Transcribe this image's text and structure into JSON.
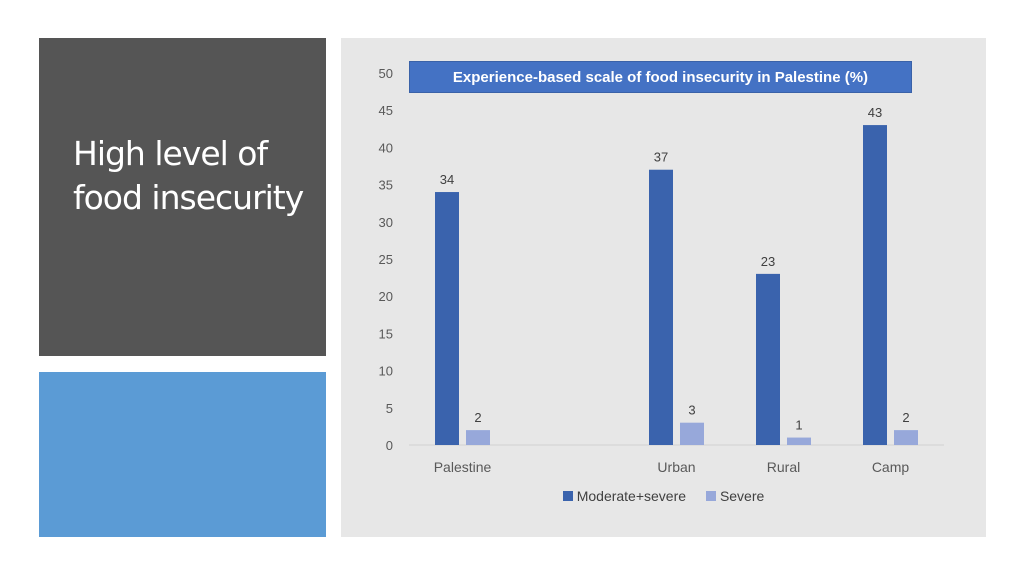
{
  "slide": {
    "title": "High level of food insecurity"
  },
  "colors": {
    "title_panel": "#555555",
    "accent_panel": "#5b9bd5",
    "chart_background": "#e7e7e7",
    "series_moderate_severe": "#3a63ad",
    "series_severe": "#97a8da"
  },
  "chart_data": {
    "type": "bar",
    "title": "Experience-based scale of food insecurity in Palestine (%)",
    "categories": [
      "Palestine",
      "",
      "Urban",
      "Rural",
      "Camp"
    ],
    "series": [
      {
        "name": "Moderate+severe",
        "values": [
          34,
          null,
          37,
          23,
          43
        ],
        "labels": [
          "34",
          "",
          "37",
          "23",
          "43"
        ],
        "color": "#3a63ad"
      },
      {
        "name": "Severe",
        "values": [
          2,
          null,
          3,
          1,
          2
        ],
        "labels": [
          "2",
          "",
          "3",
          "1",
          "2"
        ],
        "color": "#97a8da"
      }
    ],
    "ylim": [
      0,
      50
    ],
    "yticks": [
      "0",
      "5",
      "10",
      "15",
      "20",
      "25",
      "30",
      "35",
      "40",
      "45",
      "50"
    ],
    "grid": false,
    "legend": "bottom"
  }
}
